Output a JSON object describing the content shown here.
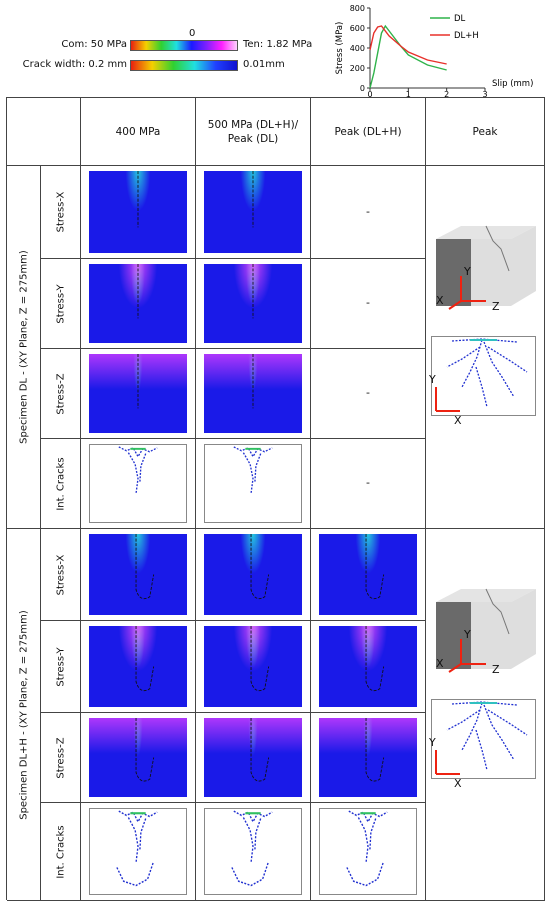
{
  "legend": {
    "stress": {
      "min_label": "Com: 50 MPa",
      "mid_label": "0",
      "max_label": "Ten: 1.82 MPa"
    },
    "crack": {
      "max_label": "Crack width: 0.2 mm",
      "min_label": "0.01mm"
    }
  },
  "chart_data": {
    "type": "line",
    "ylabel": "Stress (MPa)",
    "xlabel": "Slip (mm)",
    "xlim": [
      0,
      3
    ],
    "ylim": [
      0,
      800
    ],
    "xticks": [
      0,
      1,
      2,
      3
    ],
    "yticks": [
      0,
      200,
      400,
      600,
      800
    ],
    "series": [
      {
        "name": "DL",
        "color": "#2fb34a",
        "x": [
          0,
          0.1,
          0.2,
          0.3,
          0.4,
          0.6,
          0.8,
          1.0,
          1.5,
          2.0
        ],
        "values": [
          0,
          150,
          350,
          550,
          620,
          520,
          420,
          330,
          230,
          180
        ]
      },
      {
        "name": "DL+H",
        "color": "#e8302a",
        "x": [
          0,
          0.1,
          0.2,
          0.3,
          0.5,
          0.8,
          1.0,
          1.5,
          2.0
        ],
        "values": [
          380,
          550,
          610,
          620,
          520,
          420,
          360,
          280,
          240
        ]
      }
    ]
  },
  "table": {
    "headers": [
      "400 MPa",
      "500 MPa (DL+H)/ Peak (DL)",
      "Peak (DL+H)",
      "Peak"
    ],
    "groups": [
      {
        "label": "Specimen DL - (XY Plane, Z = 275mm)",
        "rows": [
          {
            "label": "Stress-X",
            "peak_dlh": "-"
          },
          {
            "label": "Stress-Y",
            "peak_dlh": "-"
          },
          {
            "label": "Stress-Z",
            "peak_dlh": "-"
          },
          {
            "label": "Int. Cracks",
            "peak_dlh": "-"
          }
        ],
        "cube_axes": [
          "Y",
          "X",
          "Z"
        ],
        "crack_axes": [
          "Y",
          "X"
        ]
      },
      {
        "label": "Specimen DL+H  - (XY Plane, Z = 275mm)",
        "rows": [
          {
            "label": "Stress-X"
          },
          {
            "label": "Stress-Y"
          },
          {
            "label": "Stress-Z"
          },
          {
            "label": "Int. Cracks"
          }
        ],
        "cube_axes": [
          "Y",
          "X",
          "Z"
        ],
        "crack_axes": [
          "Y",
          "X"
        ]
      }
    ]
  }
}
